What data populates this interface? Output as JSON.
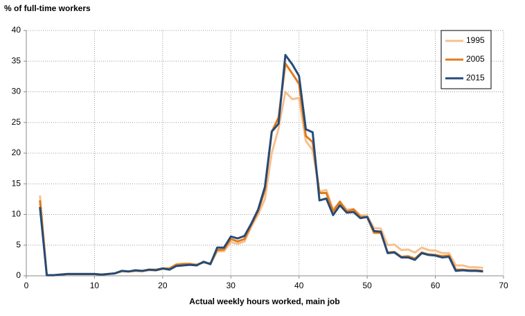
{
  "chart_data": {
    "type": "line",
    "title": "% of full-time workers",
    "xlabel": "Actual weekly hours worked, main job",
    "x": [
      2,
      3,
      4,
      5,
      6,
      7,
      8,
      9,
      10,
      11,
      12,
      13,
      14,
      15,
      16,
      17,
      18,
      19,
      20,
      21,
      22,
      23,
      24,
      25,
      26,
      27,
      28,
      29,
      30,
      31,
      32,
      33,
      34,
      35,
      36,
      37,
      38,
      39,
      40,
      41,
      42,
      43,
      44,
      45,
      46,
      47,
      48,
      49,
      50,
      51,
      52,
      53,
      54,
      55,
      56,
      57,
      58,
      59,
      60,
      61,
      62,
      63,
      64,
      65,
      66,
      67
    ],
    "series": [
      {
        "name": "1995",
        "color": "#f7c08e",
        "values": [
          13.1,
          0.1,
          0.1,
          0.2,
          0.3,
          0.3,
          0.3,
          0.3,
          0.3,
          0.2,
          0.3,
          0.4,
          0.7,
          0.7,
          0.8,
          0.7,
          0.9,
          0.9,
          1.1,
          1.2,
          1.9,
          2.0,
          2.0,
          1.8,
          2.2,
          1.9,
          4.0,
          4.0,
          5.5,
          5.2,
          5.6,
          8.0,
          10.0,
          12.5,
          20.0,
          24.0,
          30.0,
          28.8,
          29.0,
          22.0,
          20.5,
          13.7,
          14.0,
          10.8,
          12.0,
          10.8,
          10.9,
          9.9,
          9.8,
          7.8,
          7.7,
          5.0,
          5.1,
          4.2,
          4.3,
          3.8,
          4.6,
          4.2,
          4.1,
          3.7,
          3.7,
          1.7,
          1.7,
          1.4,
          1.4,
          1.3
        ]
      },
      {
        "name": "2005",
        "color": "#e07b1a",
        "values": [
          12.3,
          0.1,
          0.1,
          0.2,
          0.3,
          0.3,
          0.3,
          0.3,
          0.3,
          0.2,
          0.3,
          0.4,
          0.8,
          0.7,
          0.8,
          0.8,
          1.0,
          1.0,
          1.2,
          1.2,
          1.8,
          1.9,
          1.9,
          1.8,
          2.2,
          2.0,
          4.2,
          4.3,
          6.0,
          5.6,
          6.0,
          8.3,
          10.5,
          14.0,
          23.5,
          25.8,
          34.6,
          33.0,
          31.3,
          22.8,
          21.8,
          13.5,
          13.5,
          10.5,
          12.1,
          10.5,
          10.8,
          9.6,
          9.6,
          7.0,
          7.0,
          3.8,
          3.9,
          3.1,
          3.2,
          2.8,
          3.8,
          3.5,
          3.4,
          3.2,
          3.3,
          1.0,
          1.0,
          0.9,
          0.9,
          0.8
        ]
      },
      {
        "name": "2015",
        "color": "#254b78",
        "values": [
          11.2,
          0.1,
          0.1,
          0.2,
          0.3,
          0.3,
          0.3,
          0.3,
          0.3,
          0.2,
          0.3,
          0.4,
          0.8,
          0.7,
          0.9,
          0.8,
          1.0,
          0.9,
          1.2,
          1.0,
          1.6,
          1.7,
          1.8,
          1.7,
          2.3,
          1.9,
          4.6,
          4.6,
          6.4,
          6.1,
          6.5,
          8.5,
          10.8,
          14.5,
          23.5,
          24.8,
          36.0,
          34.5,
          32.6,
          23.9,
          23.4,
          12.3,
          12.6,
          9.9,
          11.5,
          10.3,
          10.4,
          9.4,
          9.6,
          7.3,
          7.2,
          3.7,
          3.8,
          3.0,
          3.0,
          2.6,
          3.7,
          3.4,
          3.3,
          3.0,
          3.1,
          0.8,
          0.9,
          0.8,
          0.8,
          0.7
        ]
      }
    ],
    "xlim": [
      0,
      70
    ],
    "xticks": [
      0,
      10,
      20,
      30,
      40,
      50,
      60,
      70
    ],
    "ylim": [
      0,
      40
    ],
    "yticks": [
      0,
      5,
      10,
      15,
      20,
      25,
      30,
      35,
      40
    ],
    "grid": true,
    "legend": "upper right"
  }
}
